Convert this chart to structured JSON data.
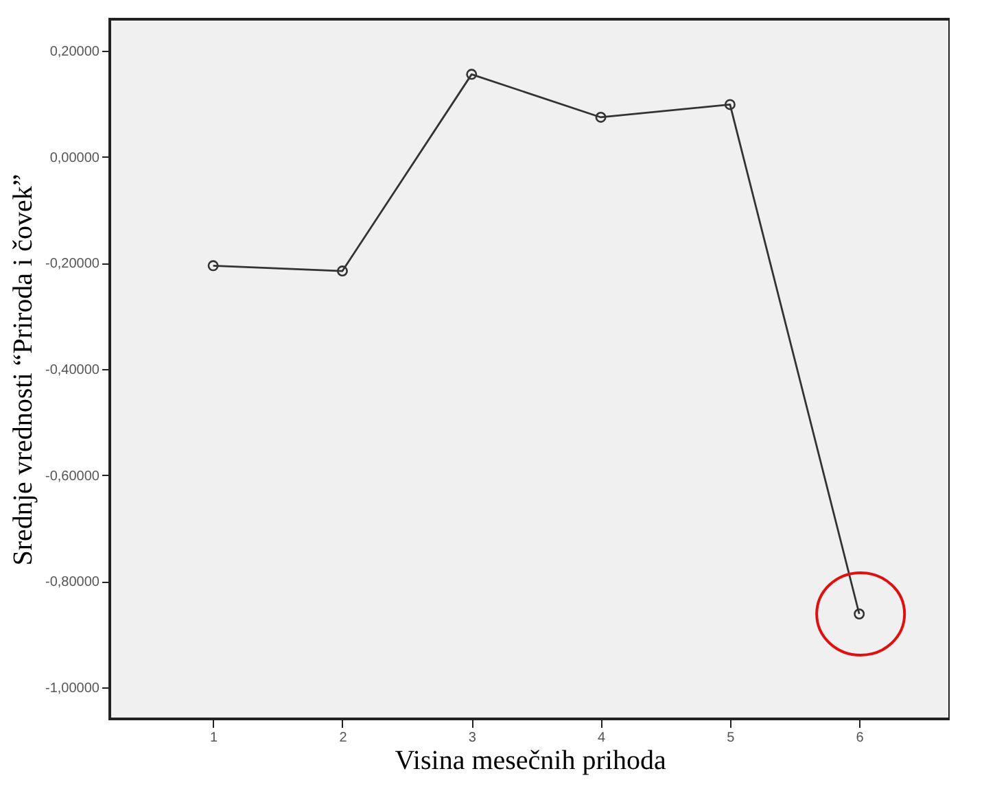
{
  "chart_data": {
    "type": "line",
    "xlabel": "Visina mesečnih prihoda",
    "ylabel": "Srednje vrednosti “Priroda i čovek”",
    "x": [
      1,
      2,
      3,
      4,
      5,
      6
    ],
    "series": [
      {
        "color": "#333333",
        "values": [
          -0.205,
          -0.215,
          0.156,
          0.075,
          0.099,
          -0.862
        ]
      }
    ],
    "xlim": [
      0.2,
      6.7
    ],
    "xticks": [
      1,
      2,
      3,
      4,
      5,
      6
    ],
    "ylim": [
      -1.06,
      0.26
    ],
    "yticks": [
      {
        "value": -1.0,
        "label": "-1,00000"
      },
      {
        "value": -0.8,
        "label": "-0,80000"
      },
      {
        "value": -0.6,
        "label": "-0,60000"
      },
      {
        "value": -0.4,
        "label": "-0,40000"
      },
      {
        "value": -0.2,
        "label": "-0,20000"
      },
      {
        "value": 0,
        "label": "0,00000"
      },
      {
        "value": 0.2,
        "label": "0,20000"
      }
    ],
    "grid": false,
    "marker": "circle",
    "line_style": "solid"
  }
}
